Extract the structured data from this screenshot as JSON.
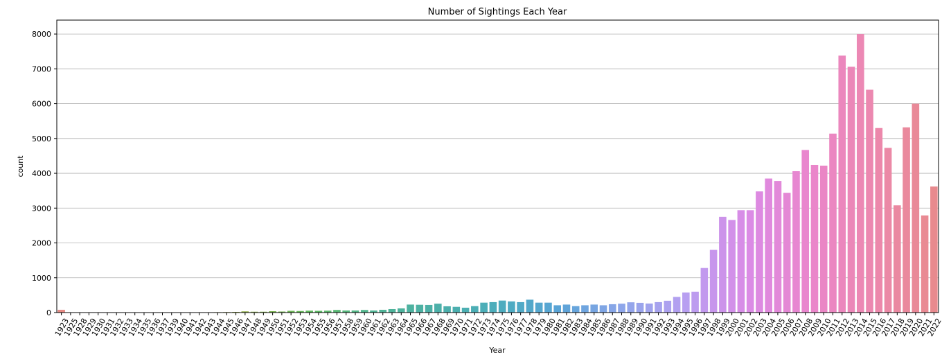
{
  "chart_data": {
    "type": "bar",
    "title": "Number of Sightings Each Year",
    "xlabel": "Year",
    "ylabel": "count",
    "ylim": [
      0,
      8400
    ],
    "yticks": [
      0,
      1000,
      2000,
      3000,
      4000,
      5000,
      6000,
      7000,
      8000
    ],
    "grid": "horizontal",
    "categories": [
      "1923",
      "1925",
      "1928",
      "1929",
      "1930",
      "1931",
      "1932",
      "1933",
      "1934",
      "1935",
      "1936",
      "1937",
      "1939",
      "1940",
      "1941",
      "1942",
      "1943",
      "1944",
      "1945",
      "1946",
      "1947",
      "1948",
      "1949",
      "1950",
      "1951",
      "1952",
      "1953",
      "1954",
      "1955",
      "1956",
      "1957",
      "1958",
      "1959",
      "1960",
      "1961",
      "1962",
      "1963",
      "1964",
      "1965",
      "1966",
      "1967",
      "1968",
      "1969",
      "1970",
      "1971",
      "1972",
      "1973",
      "1974",
      "1975",
      "1976",
      "1977",
      "1978",
      "1979",
      "1980",
      "1981",
      "1982",
      "1983",
      "1984",
      "1985",
      "1986",
      "1987",
      "1988",
      "1989",
      "1990",
      "1991",
      "1992",
      "1993",
      "1994",
      "1995",
      "1996",
      "1997",
      "1998",
      "1999",
      "2000",
      "2001",
      "2002",
      "2003",
      "2004",
      "2005",
      "2006",
      "2007",
      "2008",
      "2009",
      "2010",
      "2011",
      "2012",
      "2013",
      "2014",
      "2015",
      "2016",
      "2017",
      "2018",
      "2019",
      "2020",
      "2021",
      "2022"
    ],
    "values": [
      80,
      3,
      2,
      3,
      2,
      2,
      3,
      3,
      4,
      4,
      5,
      6,
      8,
      8,
      6,
      8,
      10,
      12,
      15,
      20,
      35,
      25,
      25,
      40,
      30,
      50,
      45,
      55,
      50,
      55,
      75,
      60,
      60,
      75,
      60,
      80,
      100,
      120,
      230,
      225,
      220,
      255,
      180,
      165,
      140,
      185,
      285,
      300,
      345,
      320,
      300,
      370,
      285,
      285,
      210,
      230,
      185,
      210,
      230,
      210,
      240,
      255,
      295,
      280,
      260,
      300,
      340,
      450,
      575,
      600,
      1280,
      1800,
      2750,
      2660,
      2940,
      2940,
      3480,
      3850,
      3780,
      3440,
      4060,
      4670,
      4240,
      4220,
      5140,
      7380,
      7060,
      8000,
      6400,
      5300,
      4730,
      3080,
      5320,
      6000,
      2790,
      3620
    ],
    "palette": [
      "#e58a84",
      "#d69a49",
      "#b8a54f",
      "#8fb048",
      "#5bb85a",
      "#4fb494",
      "#4cb0a8",
      "#4cadbd",
      "#5aa4d7",
      "#8fa6ea",
      "#b79ff1",
      "#da8be6",
      "#ea86cc",
      "#ec88af",
      "#e88a8e"
    ]
  }
}
